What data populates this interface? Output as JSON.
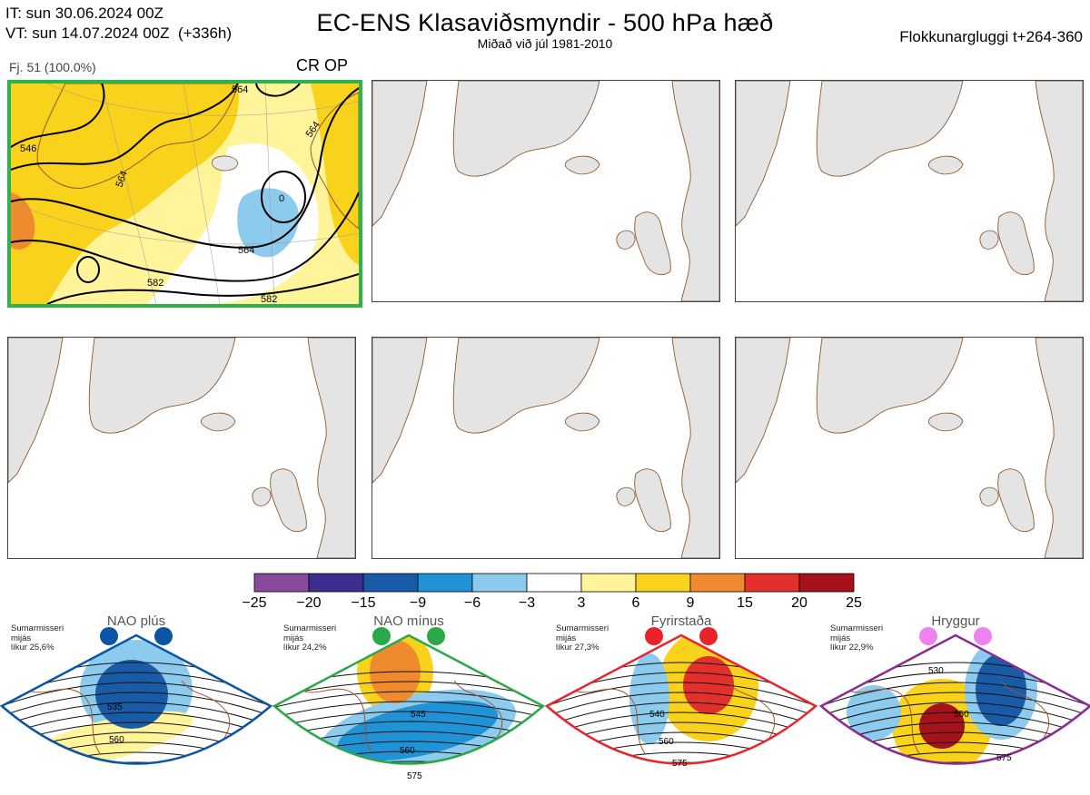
{
  "header": {
    "it_line": "IT: sun 30.06.2024 00Z",
    "vt_line": "VT: sun 14.07.2024 00Z  (+336h)",
    "title": "EC-ENS Klasaviðsmyndir - 500 hPa hæð",
    "subtitle": "Miðað við júl 1981-2010",
    "window": "Flokkunargluggi t+264-360"
  },
  "panel_main": {
    "label": "Fj. 51 (100.0%)",
    "tag": "CR OP",
    "border_color": "#2db34a",
    "contour_labels": [
      "546",
      "564",
      "564",
      "564",
      "564",
      "582",
      "582",
      "564"
    ]
  },
  "colorbar": {
    "ticks": [
      "−25",
      "−20",
      "−15",
      "−9",
      "−6",
      "−3",
      "3",
      "6",
      "9",
      "15",
      "20",
      "25"
    ],
    "colors": [
      "#8a4a9c",
      "#3e2d8f",
      "#1a5ba8",
      "#1f93d6",
      "#8ccbed",
      "#ffffff",
      "#fff49a",
      "#f9d21c",
      "#f08a2e",
      "#e3302c",
      "#a51219"
    ]
  },
  "classes": [
    {
      "name": "NAO plús",
      "note": "Sumarmisseri\nmijás\nlíkur 25,6%",
      "color": "#0a56a4",
      "labels": [
        "535",
        "560"
      ]
    },
    {
      "name": "NAO mínus",
      "note": "Sumarmisseri\nmijás\nlíkur 24,2%",
      "color": "#2aa84a",
      "labels": [
        "545",
        "560",
        "575"
      ]
    },
    {
      "name": "Fyrirstaða",
      "note": "Sumarmisseri\nmijás\nlíkur 27,3%",
      "color": "#e8242a",
      "labels": [
        "540",
        "560",
        "575"
      ]
    },
    {
      "name": "Hryggur",
      "note": "Sumarmisseri\nmijás\nlíkur 22,9%",
      "color": "#8a2d8e",
      "labels": [
        "530",
        "550",
        "575"
      ]
    }
  ],
  "chart_data": {
    "type": "heatmap",
    "title": "EC-ENS Klasaviðsmyndir - 500 hPa hæð",
    "subtitle": "Miðað við júl 1981-2010",
    "colorbar_levels": [
      -25,
      -20,
      -15,
      -9,
      -6,
      -3,
      3,
      6,
      9,
      15,
      20,
      25
    ],
    "series": [
      {
        "name": "Fj. 51 (100.0%)",
        "values": [
          546,
          564,
          564,
          564,
          564,
          582,
          582,
          564
        ]
      },
      {
        "name": "NAO plús",
        "values": [
          535,
          560
        ]
      },
      {
        "name": "NAO mínus",
        "values": [
          545,
          560,
          575
        ]
      },
      {
        "name": "Fyrirstaða",
        "values": [
          540,
          560,
          575
        ]
      },
      {
        "name": "Hryggur",
        "values": [
          530,
          550,
          575
        ]
      }
    ]
  }
}
